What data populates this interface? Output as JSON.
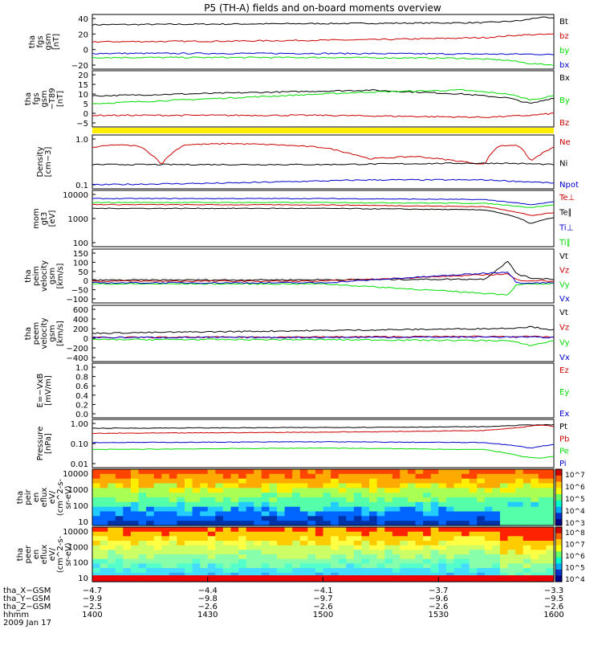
{
  "title": "P5 (TH-A) fields and on-board moments overview",
  "colors": {
    "black": "#000000",
    "red": "#cc0000",
    "green": "#00dd00",
    "blue": "#0000cc",
    "yellow": "#ffee00"
  },
  "chart_data": [
    {
      "type": "line",
      "panel": "fgs-gsm",
      "ylabel": [
        "tha",
        "fgs",
        "gsm",
        "[nT]"
      ],
      "yticks": [
        "40",
        "20",
        "0",
        "−20"
      ],
      "ylim": [
        -35,
        45
      ],
      "legend": [
        {
          "name": "Bt",
          "color": "black"
        },
        {
          "name": "bz",
          "color": "red"
        },
        {
          "name": "by",
          "color": "green"
        },
        {
          "name": "bx",
          "color": "blue"
        }
      ],
      "series": [
        {
          "name": "Bt",
          "color": "black",
          "x": [
            0,
            0.3,
            0.6,
            0.85,
            0.93,
            0.97,
            1.0
          ],
          "y": [
            30,
            31,
            32,
            33,
            36,
            41,
            39
          ]
        },
        {
          "name": "bz",
          "color": "red",
          "x": [
            0,
            0.3,
            0.6,
            0.85,
            0.93,
            1.0
          ],
          "y": [
            5,
            6,
            8,
            11,
            15,
            16
          ]
        },
        {
          "name": "bx",
          "color": "blue",
          "x": [
            0,
            0.5,
            0.85,
            0.95,
            1.0
          ],
          "y": [
            -12,
            -12,
            -13,
            -13,
            -14
          ]
        },
        {
          "name": "by",
          "color": "green",
          "x": [
            0,
            0.5,
            0.8,
            0.9,
            0.95,
            1.0
          ],
          "y": [
            -18,
            -18,
            -19,
            -22,
            -27,
            -29
          ]
        }
      ]
    },
    {
      "type": "line",
      "panel": "fgs-gsm-t89",
      "ylabel": [
        "tha",
        "fgs",
        "gsm",
        "−T89",
        "[nT]"
      ],
      "yticks": [
        "20",
        "15",
        "10",
        "5",
        "0",
        "−5"
      ],
      "ylim": [
        -8,
        21
      ],
      "legend": [
        {
          "name": "Bx",
          "color": "black"
        },
        {
          "name": "By",
          "color": "green"
        },
        {
          "name": "Bz",
          "color": "red"
        }
      ],
      "series": [
        {
          "name": "Bx",
          "color": "black",
          "x": [
            0,
            0.2,
            0.4,
            0.6,
            0.8,
            0.9,
            0.95,
            1.0
          ],
          "y": [
            8,
            9,
            10,
            11,
            9,
            7,
            4,
            7
          ]
        },
        {
          "name": "By",
          "color": "green",
          "x": [
            0,
            0.2,
            0.4,
            0.6,
            0.8,
            0.9,
            0.95,
            1.0
          ],
          "y": [
            4,
            6,
            8,
            10,
            11,
            9,
            6,
            8
          ]
        },
        {
          "name": "Bz",
          "color": "red",
          "x": [
            0,
            0.5,
            0.85,
            0.95,
            1.0
          ],
          "y": [
            -2,
            -2,
            -3,
            -2,
            -1
          ]
        }
      ]
    },
    {
      "type": "line",
      "panel": "density",
      "log": true,
      "ylabel": [
        "Density",
        "[cm−3]"
      ],
      "yticks": [
        "1.0",
        "0.1"
      ],
      "ylim": [
        0.09,
        1.3
      ],
      "legend": [
        {
          "name": "Ne",
          "color": "red"
        },
        {
          "name": "Ni",
          "color": "black"
        },
        {
          "name": "Npot",
          "color": "blue"
        }
      ],
      "series": [
        {
          "name": "Ne",
          "color": "red",
          "x": [
            0,
            0.05,
            0.1,
            0.15,
            0.2,
            0.3,
            0.4,
            0.5,
            0.6,
            0.7,
            0.8,
            0.85,
            0.88,
            0.92,
            0.95,
            1.0
          ],
          "y": [
            0.7,
            0.8,
            0.75,
            0.3,
            0.8,
            0.85,
            0.8,
            0.7,
            0.4,
            0.45,
            0.35,
            0.3,
            0.75,
            0.8,
            0.35,
            0.7
          ]
        },
        {
          "name": "Ni",
          "color": "black",
          "x": [
            0,
            0.2,
            0.5,
            0.8,
            0.9,
            1.0
          ],
          "y": [
            0.3,
            0.3,
            0.3,
            0.32,
            0.32,
            0.3
          ]
        },
        {
          "name": "Npot",
          "color": "blue",
          "x": [
            0,
            0.3,
            0.6,
            0.85,
            1.0
          ],
          "y": [
            0.11,
            0.12,
            0.14,
            0.14,
            0.12
          ]
        }
      ]
    },
    {
      "type": "line",
      "panel": "mom-temp",
      "log": true,
      "ylabel": [
        "mom",
        "gt3",
        "[eV]"
      ],
      "yticks": [
        "10000",
        "1000",
        "100"
      ],
      "ylim": [
        100,
        12000
      ],
      "legend": [
        {
          "name": "Te⊥",
          "color": "red"
        },
        {
          "name": "Te∥",
          "color": "black"
        },
        {
          "name": "Ti⊥",
          "color": "blue"
        },
        {
          "name": "Ti∥",
          "color": "green"
        }
      ],
      "series": [
        {
          "name": "Ti⊥",
          "color": "blue",
          "x": [
            0,
            0.5,
            0.85,
            0.95,
            1.0
          ],
          "y": [
            6000,
            6000,
            5500,
            3500,
            4500
          ]
        },
        {
          "name": "Ti∥",
          "color": "green",
          "x": [
            0,
            0.5,
            0.85,
            0.95,
            1.0
          ],
          "y": [
            4300,
            4300,
            4000,
            2800,
            3500
          ]
        },
        {
          "name": "Te⊥",
          "color": "red",
          "x": [
            0,
            0.5,
            0.85,
            0.95,
            1.0
          ],
          "y": [
            3600,
            3500,
            3000,
            1400,
            1800
          ]
        },
        {
          "name": "Te∥",
          "color": "black",
          "x": [
            0,
            0.5,
            0.85,
            0.95,
            1.0
          ],
          "y": [
            2600,
            2600,
            2300,
            700,
            1200
          ]
        }
      ]
    },
    {
      "type": "line",
      "panel": "peim-velocity",
      "ylabel": [
        "tha",
        "peim",
        "velocity",
        "gsm",
        "[km/s]"
      ],
      "yticks": [
        "150",
        "100",
        "50",
        "0",
        "−50",
        "−100"
      ],
      "ylim": [
        -100,
        160
      ],
      "legend": [
        {
          "name": "Vt",
          "color": "black"
        },
        {
          "name": "Vz",
          "color": "red"
        },
        {
          "name": "Vy",
          "color": "green"
        },
        {
          "name": "Vx",
          "color": "blue"
        }
      ],
      "series": [
        {
          "name": "Vt",
          "color": "black",
          "x": [
            0,
            0.5,
            0.85,
            0.9,
            0.92,
            0.95,
            1.0
          ],
          "y": [
            10,
            12,
            15,
            100,
            40,
            20,
            15
          ]
        },
        {
          "name": "Vz",
          "color": "red",
          "x": [
            0,
            0.5,
            0.9,
            0.92,
            1.0
          ],
          "y": [
            5,
            5,
            40,
            10,
            5
          ]
        },
        {
          "name": "Vy",
          "color": "green",
          "x": [
            0,
            0.5,
            0.9,
            0.92,
            1.0
          ],
          "y": [
            -8,
            -8,
            -60,
            -10,
            -8
          ]
        },
        {
          "name": "Vx",
          "color": "blue",
          "x": [
            0,
            0.5,
            0.9,
            0.92,
            1.0
          ],
          "y": [
            -3,
            -3,
            50,
            -3,
            -3
          ]
        }
      ]
    },
    {
      "type": "line",
      "panel": "peem-velocity",
      "ylabel": [
        "tha",
        "peem",
        "velocity",
        "gsm",
        "[km/s]"
      ],
      "yticks": [
        "600",
        "400",
        "200",
        "0",
        "−200",
        "−400"
      ],
      "ylim": [
        -450,
        600
      ],
      "legend": [
        {
          "name": "Vt",
          "color": "black"
        },
        {
          "name": "Vz",
          "color": "red"
        },
        {
          "name": "Vy",
          "color": "green"
        },
        {
          "name": "Vx",
          "color": "blue"
        }
      ],
      "series": [
        {
          "name": "Vt",
          "color": "black",
          "x": [
            0,
            0.2,
            0.4,
            0.6,
            0.8,
            0.9,
            0.95,
            1.0
          ],
          "y": [
            80,
            100,
            120,
            140,
            160,
            170,
            200,
            140
          ]
        },
        {
          "name": "Vz",
          "color": "red",
          "x": [
            0,
            0.5,
            0.9,
            1.0
          ],
          "y": [
            0,
            10,
            20,
            10
          ]
        },
        {
          "name": "Vy",
          "color": "green",
          "x": [
            0,
            0.5,
            0.9,
            0.95,
            1.0
          ],
          "y": [
            -40,
            -40,
            -60,
            -150,
            -60
          ]
        },
        {
          "name": "Vx",
          "color": "blue",
          "x": [
            0,
            0.5,
            0.9,
            1.0
          ],
          "y": [
            0,
            0,
            10,
            0
          ]
        }
      ]
    },
    {
      "type": "line",
      "panel": "e-field",
      "ylabel": [
        "E=−VxB",
        "[mV/m]"
      ],
      "yticks": [
        "1.0",
        "0.8",
        "0.6",
        "0.4",
        "0.2",
        "0.0"
      ],
      "ylim": [
        0,
        1
      ],
      "legend": [
        {
          "name": "Ez",
          "color": "red"
        },
        {
          "name": "Ey",
          "color": "green"
        },
        {
          "name": "Ex",
          "color": "blue"
        }
      ],
      "series": []
    },
    {
      "type": "line",
      "panel": "pressure",
      "log": true,
      "ylabel": [
        "Pressure",
        "[nPa]"
      ],
      "yticks": [
        "1.00",
        "0.10",
        "0.01"
      ],
      "ylim": [
        0.01,
        1.2
      ],
      "legend": [
        {
          "name": "Pt",
          "color": "black"
        },
        {
          "name": "Pb",
          "color": "red"
        },
        {
          "name": "Pe",
          "color": "green"
        },
        {
          "name": "Pi",
          "color": "blue"
        }
      ],
      "series": [
        {
          "name": "Pt",
          "color": "black",
          "x": [
            0,
            0.3,
            0.6,
            0.85,
            0.95,
            1.0
          ],
          "y": [
            0.5,
            0.52,
            0.55,
            0.58,
            0.7,
            0.7
          ]
        },
        {
          "name": "Pb",
          "color": "red",
          "x": [
            0,
            0.3,
            0.6,
            0.85,
            0.93,
            0.97,
            1.0
          ],
          "y": [
            0.3,
            0.32,
            0.35,
            0.4,
            0.55,
            0.7,
            0.6
          ]
        },
        {
          "name": "Pi",
          "color": "blue",
          "x": [
            0,
            0.5,
            0.85,
            0.95,
            1.0
          ],
          "y": [
            0.12,
            0.13,
            0.12,
            0.07,
            0.1
          ]
        },
        {
          "name": "Pe",
          "color": "green",
          "x": [
            0,
            0.5,
            0.85,
            0.93,
            0.97,
            1.0
          ],
          "y": [
            0.06,
            0.07,
            0.06,
            0.03,
            0.025,
            0.03
          ]
        }
      ]
    },
    {
      "type": "heatmap",
      "panel": "peir-eflux",
      "ylabel": [
        "tha",
        "peir",
        "en",
        "eflux",
        "eV/",
        "(cm^2-s-",
        "sr-eV)"
      ],
      "yticks": [
        "10000",
        "1000",
        "100",
        "10"
      ],
      "colorbar_labels": [
        "10^7",
        "10^6",
        "10^5",
        "10^4",
        "10^3"
      ]
    },
    {
      "type": "heatmap",
      "panel": "peer-eflux",
      "ylabel": [
        "tha",
        "peer",
        "en",
        "eflux",
        "eV/",
        "(cm^2-s-",
        "sr-eV)"
      ],
      "yticks": [
        "10000",
        "1000",
        "100",
        "10"
      ],
      "colorbar_labels": [
        "10^8",
        "10^7",
        "10^6",
        "10^5",
        "10^4"
      ]
    }
  ],
  "xaxis": {
    "rows": [
      {
        "label": "tha_X−GSM",
        "values": [
          "−4.7",
          "−4.4",
          "−4.1",
          "−3.7",
          "−3.3"
        ]
      },
      {
        "label": "tha_Y−GSM",
        "values": [
          "−9.9",
          "−9.8",
          "−9.7",
          "−9.6",
          "−9.5"
        ]
      },
      {
        "label": "tha_Z−GSM",
        "values": [
          "−2.5",
          "−2.6",
          "−2.6",
          "−2.6",
          "−2.6"
        ]
      },
      {
        "label": "hhmm",
        "values": [
          "1400",
          "1430",
          "1500",
          "1530",
          "1600"
        ]
      }
    ],
    "date": "2009 Jan 17"
  }
}
